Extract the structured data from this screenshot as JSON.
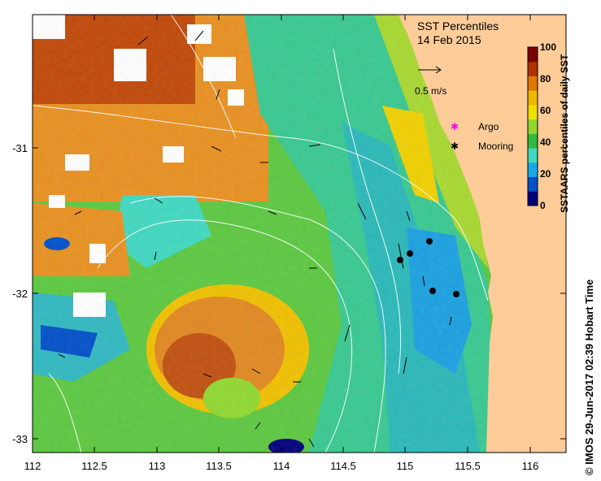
{
  "map": {
    "title": "SST Percentiles",
    "date": "14 Feb 2015",
    "x_ticks": [
      "112",
      "112.5",
      "113",
      "113.5",
      "114",
      "114.5",
      "115",
      "115.5",
      "116"
    ],
    "y_ticks": [
      "-31",
      "-32",
      "-33"
    ],
    "scale_vector_label": "0.5 m/s",
    "legend": {
      "argo_label": "Argo",
      "mooring_label": "Mooring"
    },
    "colorbar": {
      "label": "SSTAARS percentiles of daily SST",
      "ticks": [
        "100",
        "80",
        "60",
        "40",
        "20",
        "0"
      ],
      "colors": [
        "#00007a",
        "#0050c8",
        "#18a8e8",
        "#40d8c0",
        "#30b840",
        "#90d830",
        "#f0e000",
        "#f0b800",
        "#e07800",
        "#b03000",
        "#7a0000"
      ]
    },
    "credit": "© IMOS 29-Jun-2017 02:39 Hobart Time",
    "land_color": "#fdcc98",
    "moorings": [
      {
        "lon": 115.2,
        "lat": -31.65
      },
      {
        "lon": 115.05,
        "lat": -31.72
      },
      {
        "lon": 114.98,
        "lat": -31.75
      },
      {
        "lon": 115.23,
        "lat": -31.97
      },
      {
        "lon": 115.42,
        "lat": -32.0
      }
    ]
  }
}
